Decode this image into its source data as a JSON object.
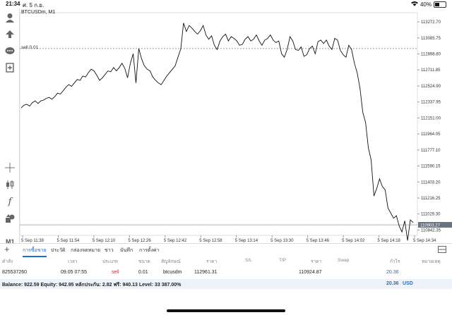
{
  "status_bar": {
    "time": "21:34",
    "date": "ศ. 5 ก.ย.",
    "battery": "40%",
    "battery_level": 0.4
  },
  "chart": {
    "symbol": "BTCUSDm, M1",
    "order_line_label": "sell 0.01",
    "current_price_label": "110903.27",
    "timeframe": "M1"
  },
  "chart_data": {
    "type": "line",
    "series": [
      {
        "values": [
          112270,
          112300,
          112310,
          112290,
          112330,
          112350,
          112320,
          112350,
          112360,
          112380,
          112390,
          112370,
          112400,
          112440,
          112430,
          112470,
          112510,
          112540,
          112520,
          112560,
          112600,
          112590,
          112640,
          112630,
          112680,
          112720,
          112700,
          112650,
          112590,
          112620,
          112660,
          112700,
          112690,
          112740,
          112700,
          112740,
          112790,
          112730,
          112620,
          112790,
          112900,
          112560,
          112960,
          112840,
          112760,
          112720,
          112700,
          112630,
          112590,
          112560,
          112540,
          112590,
          112640,
          112680,
          112720,
          112760,
          112860,
          112960,
          113260,
          113160,
          113230,
          113200,
          113160,
          113130,
          113170,
          113230,
          113120,
          113070,
          113110,
          113000,
          112950,
          113050,
          113100,
          113130,
          113050,
          113100,
          113080,
          113050,
          113000,
          113010,
          113070,
          113100,
          113050,
          113070,
          113120,
          113050,
          113000,
          113060,
          113080,
          113120,
          113060,
          113030,
          113050,
          112900,
          112860,
          112950,
          113100,
          113050,
          112950,
          112940,
          112980,
          112870,
          112890,
          112960,
          112990,
          112900,
          113040,
          113060,
          113020,
          113060,
          112990,
          112950,
          113080,
          113060,
          112940,
          112890,
          112860,
          113000,
          112950,
          112790,
          112680,
          112500,
          112220,
          112100,
          111800,
          111660,
          111240,
          111330,
          111440,
          111350,
          111310,
          111100,
          111040,
          110980,
          111010,
          110890,
          110820,
          110950,
          110720,
          110960,
          110930
        ]
      }
    ],
    "y_ticks": [
      "113272.70",
      "113085.75",
      "112898.80",
      "112711.85",
      "112524.90",
      "112337.95",
      "112151.00",
      "111964.05",
      "111777.10",
      "111590.15",
      "111403.20",
      "111216.25",
      "111029.30",
      "110842.35"
    ],
    "x_ticks": [
      "5 Sep 11:38",
      "5 Sep 11:54",
      "5 Sep 12:10",
      "5 Sep 12:26",
      "5 Sep 12:42",
      "5 Sep 12:58",
      "5 Sep 13:14",
      "5 Sep 13:30",
      "5 Sep 13:46",
      "5 Sep 14:02",
      "5 Sep 14:18",
      "5 Sep 14:34"
    ],
    "ylim": [
      110780,
      113380
    ],
    "order_line_price": 112961.31,
    "current_price": 110903.27,
    "grid": true
  },
  "tabs": [
    "การซื้อขาย",
    "ประวัติ",
    "กล่องจดหมาย",
    "ข่าว",
    "บันทึก",
    "การตั้งค่า"
  ],
  "table": {
    "headers": [
      "คำสั่ง",
      "เวลา",
      "ประเภท",
      "ขนาด",
      "สัญลักษณ์",
      "ราคา",
      "S/L",
      "T/P",
      "ราคา",
      "Swap",
      "กำไร",
      "หมายเหตุ"
    ],
    "row": {
      "order": "825537260",
      "time": "09.05 07:55",
      "type": "sell",
      "size": "0.01",
      "symbol": "btcusdm",
      "open_price": "112961.31",
      "price": "110924.87",
      "profit": "20.36"
    }
  },
  "balance": {
    "text": "Balance: 922.59 Equity: 942.95 หลักประกัน: 2.82 ฟรี: 940.13 Level: 33 387.00%",
    "profit": "20.36",
    "currency": "USD"
  },
  "colors": {
    "accent": "#1a6fd6",
    "sell": "#dd2233",
    "line": "#111111"
  }
}
